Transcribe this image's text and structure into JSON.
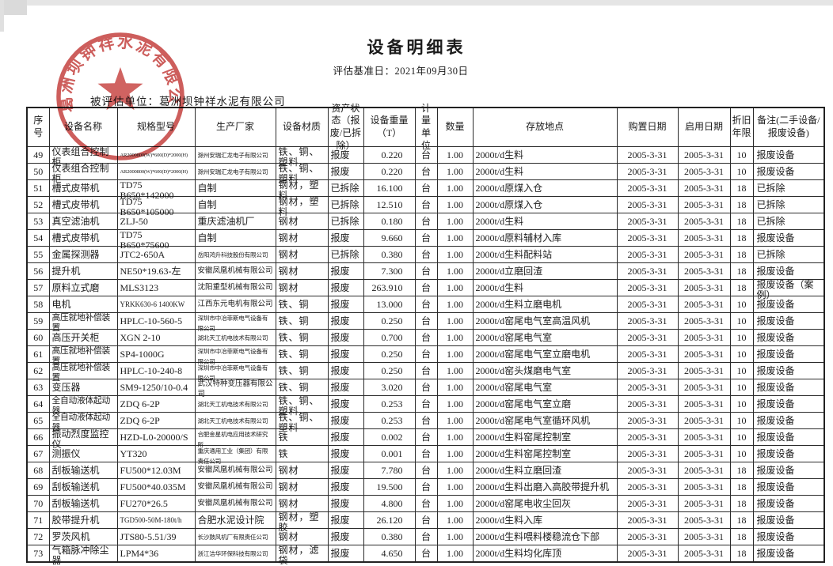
{
  "doc": {
    "title": "设备明细表",
    "basis_date_line": "评估基准日：2021年09月30日",
    "evaluated_unit_line": "被评估单位：葛洲坝钟祥水泥有限公司",
    "stamp_text": "葛洲坝钟祥水泥有限公司",
    "stamp_color": "#c23a38"
  },
  "table": {
    "col_keys": [
      "serial",
      "equipment-name",
      "spec-model",
      "manufacturer",
      "material",
      "asset-status",
      "weight",
      "unit",
      "quantity",
      "location",
      "purchase-date",
      "start-date",
      "depreciation-years",
      "remark"
    ],
    "headers": [
      "序号",
      "设备名称",
      "规格型号",
      "生产厂家",
      "设备材质",
      "资产状态（报废/已拆除）",
      "设备重量（T）",
      "计量单位",
      "数量",
      "存放地点",
      "购置日期",
      "启用日期",
      "折旧年限",
      "备注(二手设备/报废设备)"
    ],
    "rows": [
      [
        "49",
        "仪表组合控制柜",
        "AR2000800(W)*600(D)*2000(H)",
        "滁州安瑞汇龙电子有限公司",
        "铁、铜、塑料",
        "报废",
        "0.220",
        "台",
        "1.00",
        "2000t/d生料",
        "2005-3-31",
        "2005-3-31",
        "10",
        "报废设备"
      ],
      [
        "50",
        "仪表组合控制柜",
        "AR2000800(W)*600(D)*2000(H)",
        "滁州安瑞汇龙电子有限公司",
        "铁、铜、塑料",
        "报废",
        "0.220",
        "台",
        "1.00",
        "2000t/d生料",
        "2005-3-31",
        "2005-3-31",
        "10",
        "报废设备"
      ],
      [
        "51",
        "槽式皮带机",
        "TD75 B650*142000",
        "自制",
        "钢材，塑料",
        "已拆除",
        "16.100",
        "台",
        "1.00",
        "2000t/d原煤入仓",
        "2005-3-31",
        "2005-3-31",
        "18",
        "已拆除"
      ],
      [
        "52",
        "槽式皮带机",
        "TD75 B650*105000",
        "自制",
        "钢材，塑料",
        "已拆除",
        "12.510",
        "台",
        "1.00",
        "2000t/d原煤入仓",
        "2005-3-31",
        "2005-3-31",
        "18",
        "已拆除"
      ],
      [
        "53",
        "真空滤油机",
        "ZLJ-50",
        "重庆滤油机厂",
        "钢材",
        "已拆除",
        "0.180",
        "台",
        "1.00",
        "2000t/d生料",
        "2005-3-31",
        "2005-3-31",
        "18",
        "已拆除"
      ],
      [
        "54",
        "槽式皮带机",
        "TD75 B650*75600",
        "自制",
        "钢材",
        "报废",
        "9.660",
        "台",
        "1.00",
        "2000t/d原料辅材入库",
        "2005-3-31",
        "2005-3-31",
        "18",
        "报废设备"
      ],
      [
        "55",
        "金属探测器",
        "JTC2-650A",
        "岳阳鸿升科技股份有限公司",
        "钢材",
        "已拆除",
        "0.380",
        "台",
        "1.00",
        "2000t/d生料配料站",
        "2005-3-31",
        "2005-3-31",
        "18",
        "已拆除"
      ],
      [
        "56",
        "提升机",
        "NE50*19.63-左",
        "安徽凤凰机械有限公司",
        "钢材",
        "报废",
        "7.300",
        "台",
        "1.00",
        "2000t/d立磨回渣",
        "2005-3-31",
        "2005-3-31",
        "18",
        "报废设备"
      ],
      [
        "57",
        "原料立式磨",
        "MLS3123",
        "沈阳重型机械有限公司",
        "钢材",
        "报废",
        "263.910",
        "台",
        "1.00",
        "2000t/d生料",
        "2005-3-31",
        "2005-3-31",
        "18",
        "报废设备（案例）"
      ],
      [
        "58",
        "电机",
        "YRKK630-6  1400KW",
        "江西东元电机有限公司",
        "铁、铜",
        "报废",
        "13.000",
        "台",
        "1.00",
        "2000t/d生料立磨电机",
        "2005-3-31",
        "2005-3-31",
        "10",
        "报废设备"
      ],
      [
        "59",
        "高压就地补偿装置",
        "HPLC-10-560-5",
        "深圳市中冶菲斯电气设备有限公司",
        "铁、铜",
        "报废",
        "0.250",
        "台",
        "1.00",
        "2000t/d窑尾电气室高温风机",
        "2005-3-31",
        "2005-3-31",
        "10",
        "报废设备"
      ],
      [
        "60",
        "高压开关柜",
        "XGN 2-10",
        "湖北天工机电技术有限公司",
        "铁、铜",
        "报废",
        "0.700",
        "台",
        "1.00",
        "2000t/d窑尾电气室",
        "2005-3-31",
        "2005-3-31",
        "10",
        "报废设备"
      ],
      [
        "61",
        "高压就地补偿装置",
        "SP4-1000G",
        "深圳市中冶菲斯电气设备有限公司",
        "铁、铜",
        "报废",
        "0.250",
        "台",
        "1.00",
        "2000t/d窑尾电气室立磨电机",
        "2005-3-31",
        "2005-3-31",
        "10",
        "报废设备"
      ],
      [
        "62",
        "高压就地补偿装置",
        "HPLC-10-240-8",
        "深圳市中冶菲斯电气设备有限公司",
        "铁、铜",
        "报废",
        "0.250",
        "台",
        "1.00",
        "2000t/d窑头煤磨电气室",
        "2005-3-31",
        "2005-3-31",
        "10",
        "报废设备"
      ],
      [
        "63",
        "变压器",
        "SM9-1250/10-0.4",
        "武汉特种变压器有限公司",
        "铁、铜",
        "报废",
        "3.020",
        "台",
        "1.00",
        "2000t/d窑尾电气室",
        "2005-3-31",
        "2005-3-31",
        "10",
        "报废设备"
      ],
      [
        "64",
        "全自动液体起动器",
        "ZDQ 6-2P",
        "湖北天工机电技术有限公司",
        "铁、铜、塑料",
        "报废",
        "0.253",
        "台",
        "1.00",
        "2000t/d窑尾电气室立磨",
        "2005-3-31",
        "2005-3-31",
        "10",
        "报废设备"
      ],
      [
        "65",
        "全自动液体起动器",
        "ZDQ 6-2P",
        "湖北天工机电技术有限公司",
        "铁、铜、塑料",
        "报废",
        "0.253",
        "台",
        "1.00",
        "2000t/d窑尾电气室循环风机",
        "2005-3-31",
        "2005-3-31",
        "10",
        "报废设备"
      ],
      [
        "66",
        "振动烈度监控仪",
        "HZD-L0-20000/S",
        "合肥金星机电应用技术研究所",
        "铁",
        "报废",
        "0.002",
        "台",
        "1.00",
        "2000t/d生料窑尾控制室",
        "2005-3-31",
        "2005-3-31",
        "10",
        "报废设备"
      ],
      [
        "67",
        "测振仪",
        "YT320",
        "重庆通用工业（集团）有限责任公司",
        "铁",
        "报废",
        "0.001",
        "台",
        "1.00",
        "2000t/d生料窑尾控制室",
        "2005-3-31",
        "2005-3-31",
        "10",
        "报废设备"
      ],
      [
        "68",
        "刮板输送机",
        "FU500*12.03M",
        "安徽凤凰机械有限公司",
        "钢材",
        "报废",
        "7.780",
        "台",
        "1.00",
        "2000t/d生料立磨回渣",
        "2005-3-31",
        "2005-3-31",
        "18",
        "报废设备"
      ],
      [
        "69",
        "刮板输送机",
        "FU500*40.035M",
        "安徽凤凰机械有限公司",
        "钢材",
        "报废",
        "19.500",
        "台",
        "1.00",
        "2000t/d生料出磨入高胶带提升机",
        "2005-3-31",
        "2005-3-31",
        "18",
        "报废设备"
      ],
      [
        "70",
        "刮板输送机",
        "FU270*26.5",
        "安徽凤凰机械有限公司",
        "钢材",
        "报废",
        "4.800",
        "台",
        "1.00",
        "2000t/d窑尾电收尘回灰",
        "2005-3-31",
        "2005-3-31",
        "18",
        "报废设备"
      ],
      [
        "71",
        "胶带提升机",
        "TGD500-50M-180t/h",
        "合肥水泥设计院",
        "钢材，塑胶",
        "报废",
        "26.120",
        "台",
        "1.00",
        "2000t/d生料入库",
        "2005-3-31",
        "2005-3-31",
        "18",
        "报废设备"
      ],
      [
        "72",
        "罗茨风机",
        "JTS80-5.51/39",
        "长沙鼓风机厂有限责任公司",
        "钢材",
        "报废",
        "0.380",
        "台",
        "1.00",
        "2000t/d生料喂料楼稳流仓下部",
        "2005-3-31",
        "2005-3-31",
        "18",
        "报废设备"
      ],
      [
        "73",
        "气箱脉冲除尘器",
        "LPM4*36",
        "浙江洁华环保科技有限公司",
        "钢材，滤袋",
        "报废",
        "4.650",
        "台",
        "1.00",
        "2000t/d生料均化库顶",
        "2005-3-31",
        "2005-3-31",
        "18",
        "报废设备"
      ]
    ]
  }
}
